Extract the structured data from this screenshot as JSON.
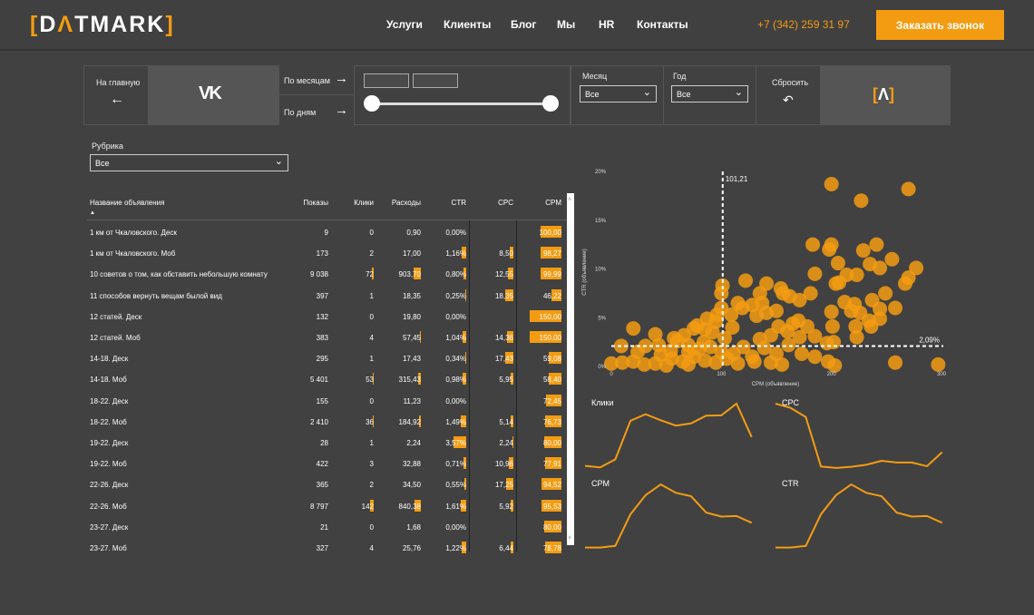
{
  "header": {
    "logo": "[DATMARK]",
    "nav": [
      "Услуги",
      "Клиенты",
      "Блог",
      "Мы",
      "HR",
      "Контакты"
    ],
    "phone": "+7 (342) 259 31 97",
    "cta": "Заказать звонок"
  },
  "filters": {
    "home": "На главную",
    "by_month": "По месяцам",
    "by_day": "По дням",
    "month_label": "Месяц",
    "month_value": "Все",
    "year_label": "Год",
    "year_value": "Все",
    "reset": "Сбросить",
    "rubric_label": "Рубрика",
    "rubric_value": "Все"
  },
  "colors": {
    "accent": "#f39c12",
    "background": "#414141"
  },
  "table": {
    "columns": [
      "Название объявления",
      "Показы",
      "Клики",
      "Расходы",
      "CTR",
      "CPC",
      "CPM"
    ],
    "rows": [
      [
        "1 км от Чкаловского. Деск",
        "9",
        "0",
        "0,90",
        "0,00%",
        "",
        "100,00"
      ],
      [
        "1 км от Чкаловского. Моб",
        "173",
        "2",
        "17,00",
        "1,16%",
        "8,50",
        "98,27"
      ],
      [
        "10 советов о том, как обставить небольшую комнату",
        "9 038",
        "72",
        "903,70",
        "0,80%",
        "12,55",
        "99,99"
      ],
      [
        "11 способов вернуть вещам былой вид",
        "397",
        "1",
        "18,35",
        "0,25%",
        "18,35",
        "46,22"
      ],
      [
        "12 статей. Деск",
        "132",
        "0",
        "19,80",
        "0,00%",
        "",
        "150,00"
      ],
      [
        "12 статей. Моб",
        "383",
        "4",
        "57,45",
        "1,04%",
        "14,36",
        "150,00"
      ],
      [
        "14-18. Деск",
        "295",
        "1",
        "17,43",
        "0,34%",
        "17,43",
        "59,08"
      ],
      [
        "14-18. Моб",
        "5 401",
        "53",
        "315,43",
        "0,98%",
        "5,95",
        "58,40"
      ],
      [
        "18-22. Деск",
        "155",
        "0",
        "11,23",
        "0,00%",
        "",
        "72,45"
      ],
      [
        "18-22. Моб",
        "2 410",
        "36",
        "184,92",
        "1,49%",
        "5,14",
        "76,73"
      ],
      [
        "19-22. Деск",
        "28",
        "1",
        "2,24",
        "3,57%",
        "2,24",
        "80,00"
      ],
      [
        "19-22. Моб",
        "422",
        "3",
        "32,88",
        "0,71%",
        "10,96",
        "77,91"
      ],
      [
        "22-26. Деск",
        "365",
        "2",
        "34,50",
        "0,55%",
        "17,25",
        "94,52"
      ],
      [
        "22-26. Моб",
        "8 797",
        "142",
        "840,38",
        "1,61%",
        "5,92",
        "95,53"
      ],
      [
        "23-27. Деск",
        "21",
        "0",
        "1,68",
        "0,00%",
        "",
        "80,00"
      ],
      [
        "23-27. Моб",
        "327",
        "4",
        "25,76",
        "1,22%",
        "6,44",
        "78,78"
      ]
    ]
  },
  "chart_data": [
    {
      "type": "scatter",
      "xlabel": "CPM (объявление)",
      "ylabel": "CTR (объявление)",
      "xlim": [
        0,
        300
      ],
      "ylim": [
        0,
        20
      ],
      "xticks": [
        "0",
        "100",
        "200",
        "300"
      ],
      "yticks": [
        "0%",
        "5%",
        "10%",
        "15%",
        "20%"
      ],
      "reference_lines": {
        "x": 101.21,
        "x_label": "101,21",
        "y": 2.09,
        "y_label": "2,09%"
      },
      "points": [
        [
          200,
          18.7
        ],
        [
          270,
          18.2
        ],
        [
          227,
          17.0
        ],
        [
          183,
          12.5
        ],
        [
          200,
          12.5
        ],
        [
          198,
          12.0
        ],
        [
          229,
          11.9
        ],
        [
          241,
          12.5
        ],
        [
          206,
          10.6
        ],
        [
          235,
          10.5
        ],
        [
          244,
          10.1
        ],
        [
          255,
          11.0
        ],
        [
          277,
          10.1
        ],
        [
          185,
          9.5
        ],
        [
          214,
          9.4
        ],
        [
          223,
          9.4
        ],
        [
          270,
          9.1
        ],
        [
          267,
          8.5
        ],
        [
          204,
          8.5
        ],
        [
          207,
          8.6
        ],
        [
          122,
          8.8
        ],
        [
          141,
          8.5
        ],
        [
          101,
          8.3
        ],
        [
          100,
          7.5
        ],
        [
          135,
          7.5
        ],
        [
          154,
          8.0
        ],
        [
          156,
          7.5
        ],
        [
          181,
          7.5
        ],
        [
          162,
          7.2
        ],
        [
          171,
          6.8
        ],
        [
          249,
          7.5
        ],
        [
          212,
          6.6
        ],
        [
          221,
          6.4
        ],
        [
          237,
          6.8
        ],
        [
          258,
          6.0
        ],
        [
          244,
          5.9
        ],
        [
          137,
          6.5
        ],
        [
          115,
          6.5
        ],
        [
          128,
          6.3
        ],
        [
          200,
          5.6
        ],
        [
          218,
          5.7
        ],
        [
          226,
          5.5
        ],
        [
          234,
          4.7
        ],
        [
          244,
          4.9
        ],
        [
          236,
          4.1
        ],
        [
          222,
          4.1
        ],
        [
          201,
          4.1
        ],
        [
          223,
          3.0
        ],
        [
          178,
          4.1
        ],
        [
          185,
          3.1
        ],
        [
          171,
          3.0
        ],
        [
          170,
          4.7
        ],
        [
          152,
          4.1
        ],
        [
          150,
          5.7
        ],
        [
          141,
          5.5
        ],
        [
          132,
          5.2
        ],
        [
          119,
          6.0
        ],
        [
          109,
          5.3
        ],
        [
          96,
          5.3
        ],
        [
          87,
          4.9
        ],
        [
          75,
          3.9
        ],
        [
          66,
          3.2
        ],
        [
          57,
          2.9
        ],
        [
          40,
          3.3
        ],
        [
          20,
          3.9
        ],
        [
          9,
          2.1
        ],
        [
          31,
          2.1
        ],
        [
          24,
          1.5
        ],
        [
          43,
          2.2
        ],
        [
          54,
          1.6
        ],
        [
          70,
          2.2
        ],
        [
          84,
          2.5
        ],
        [
          92,
          3.5
        ],
        [
          103,
          2.9
        ],
        [
          111,
          1.3
        ],
        [
          128,
          1.0
        ],
        [
          139,
          1.9
        ],
        [
          150,
          1.3
        ],
        [
          161,
          2.2
        ],
        [
          173,
          1.3
        ],
        [
          185,
          1.0
        ],
        [
          196,
          2.4
        ],
        [
          202,
          2.5
        ],
        [
          197,
          0.5
        ],
        [
          203,
          0.1
        ],
        [
          258,
          0.4
        ],
        [
          297,
          0.2
        ],
        [
          10,
          0.4
        ],
        [
          0,
          0.3
        ],
        [
          20,
          0.5
        ],
        [
          40,
          0.3
        ],
        [
          55,
          0.8
        ],
        [
          65,
          0.5
        ],
        [
          75,
          1.0
        ],
        [
          85,
          0.6
        ],
        [
          95,
          0.4
        ],
        [
          105,
          0.8
        ],
        [
          115,
          0.3
        ],
        [
          130,
          0.5
        ],
        [
          145,
          0.4
        ],
        [
          155,
          0.2
        ],
        [
          80,
          1.8
        ],
        [
          90,
          2.0
        ],
        [
          70,
          1.5
        ],
        [
          60,
          2.6
        ],
        [
          45,
          1.2
        ],
        [
          100,
          1.5
        ],
        [
          110,
          4.0
        ],
        [
          120,
          2.0
        ],
        [
          135,
          2.8
        ],
        [
          145,
          3.2
        ],
        [
          160,
          3.6
        ],
        [
          165,
          4.4
        ],
        [
          95,
          4.6
        ],
        [
          85,
          3.8
        ],
        [
          78,
          4.2
        ],
        [
          100,
          6.0
        ],
        [
          70,
          0.2
        ],
        [
          50,
          0.1
        ],
        [
          30,
          0.2
        ]
      ]
    },
    {
      "type": "line",
      "title": "Клики",
      "values": [
        17,
        12,
        40,
        175,
        198,
        177,
        158,
        166,
        193,
        194,
        235,
        118
      ]
    },
    {
      "type": "line",
      "title": "CPC",
      "values": [
        235,
        220,
        188,
        15,
        10,
        14,
        21,
        35,
        29,
        29,
        16,
        65
      ]
    },
    {
      "type": "line",
      "title": "CPM",
      "values": [
        14,
        14,
        20,
        132,
        200,
        238,
        208,
        196,
        138,
        124,
        126,
        102
      ]
    },
    {
      "type": "line",
      "title": "CTR",
      "values": [
        14,
        14,
        20,
        132,
        200,
        238,
        208,
        196,
        138,
        124,
        126,
        102
      ]
    }
  ]
}
